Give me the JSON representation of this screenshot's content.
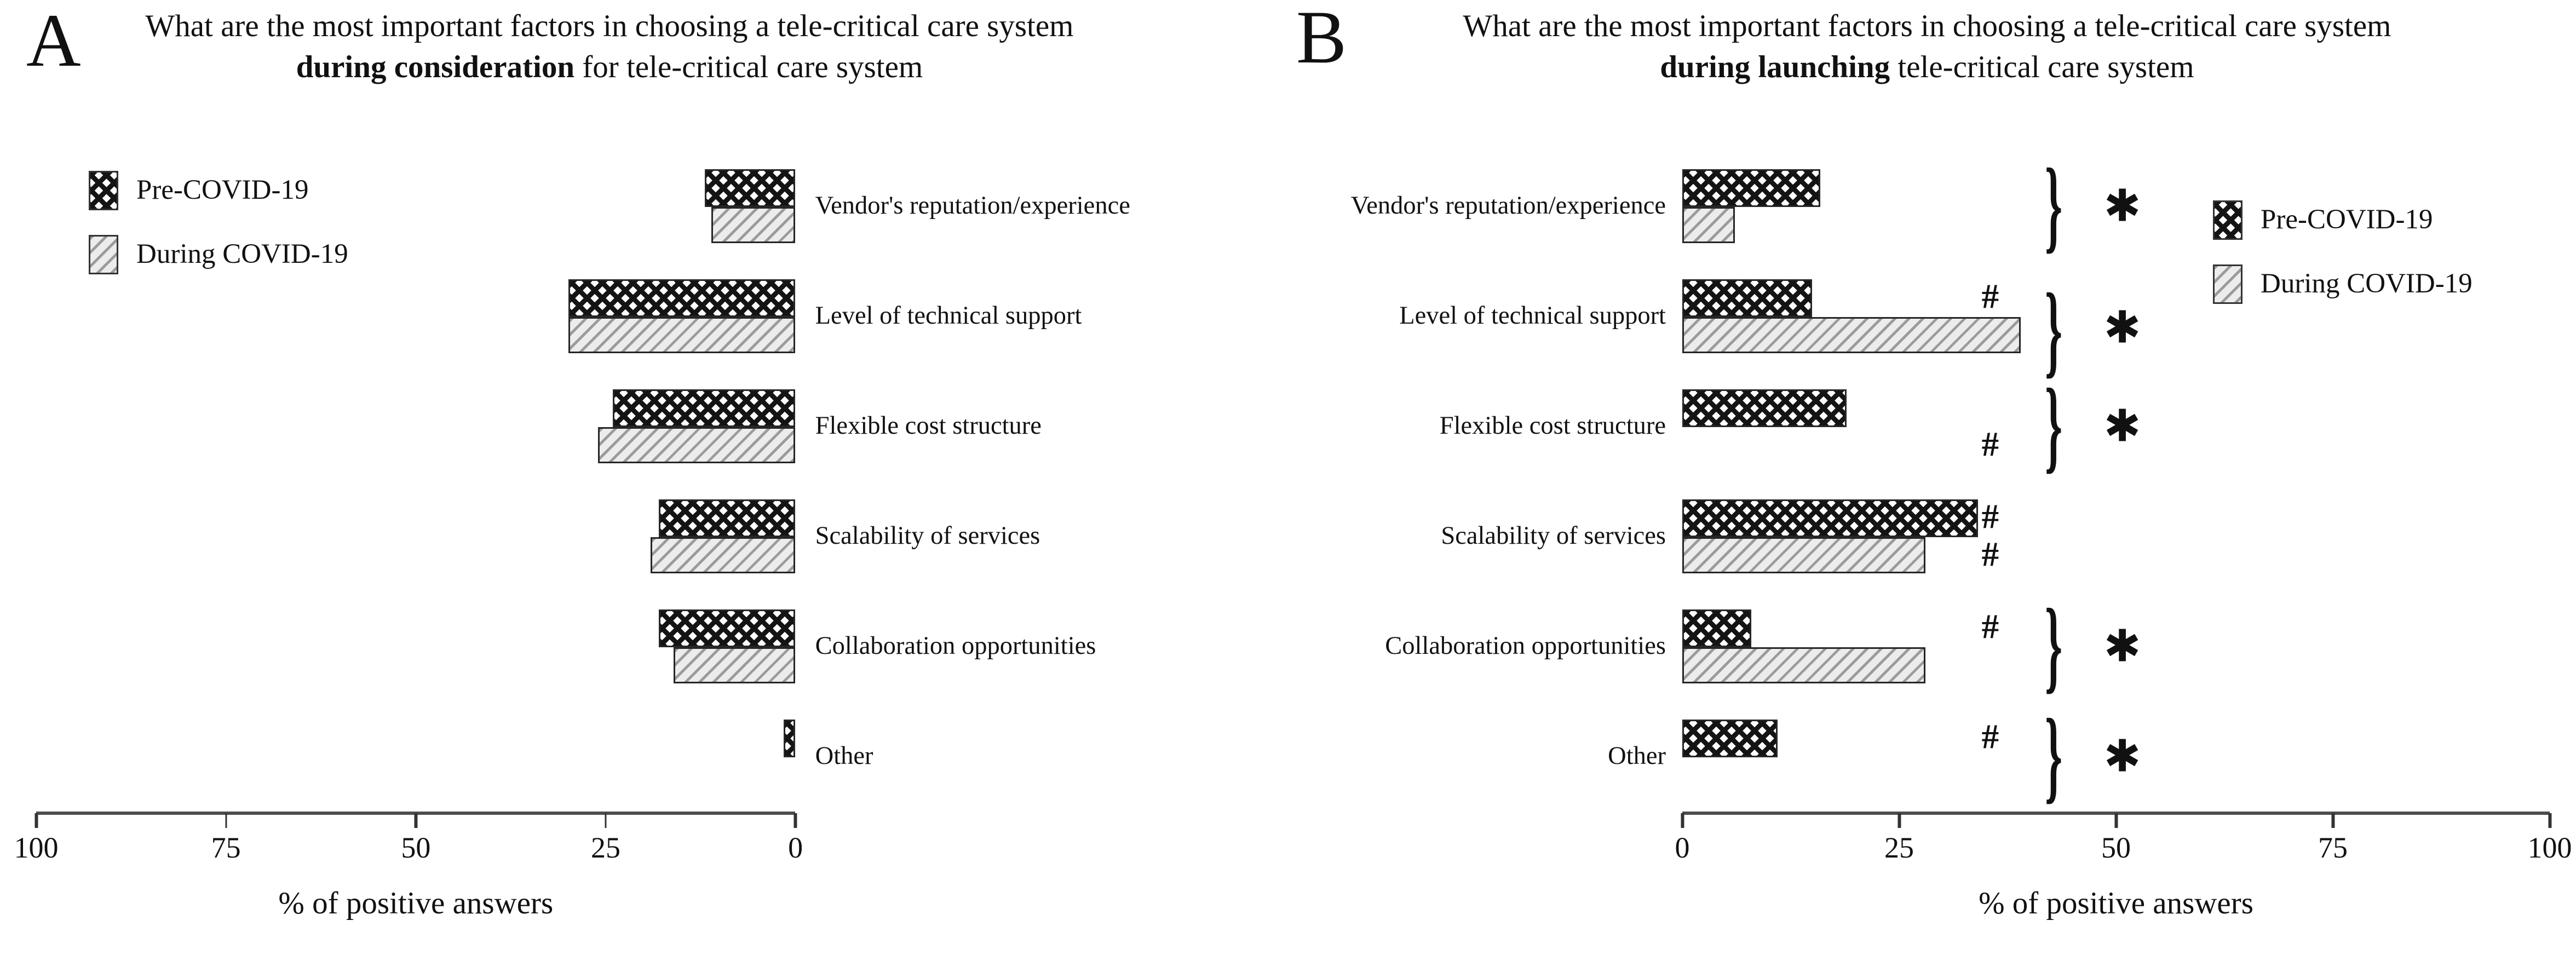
{
  "figure": {
    "panels": [
      {
        "letter": "A",
        "title_prefix": "What are the most important factors in choosing a tele-critical care system ",
        "title_bold": "during consideration",
        "title_suffix": " for tele-critical care system"
      },
      {
        "letter": "B",
        "title_prefix": "What are the most important factors in choosing a tele-critical care system ",
        "title_bold": "during launching",
        "title_suffix": " tele-critical care system"
      }
    ]
  },
  "legend": {
    "pre_label": "Pre-COVID-19",
    "during_label": "During COVID-19"
  },
  "axis": {
    "title": "% of positive answers",
    "ticks_a": [
      "100",
      "75",
      "50",
      "25",
      "0"
    ],
    "ticks_b": [
      "0",
      "25",
      "50",
      "75",
      "100"
    ]
  },
  "colors": {
    "pre_pattern": "#141414",
    "during_pattern_line": "#9b9b9b",
    "during_pattern_bg": "#ececec",
    "axis_line": "#4d4d4d",
    "text": "#111111"
  },
  "chart_data": [
    {
      "type": "bar",
      "orientation": "horizontal",
      "direction": "right-to-left",
      "title": "What are the most important factors in choosing a tele-critical care system during consideration for tele-critical care system",
      "categories": [
        "Vendor's reputation/experience",
        "Level of technical support",
        "Flexible cost structure",
        "Scalability of services",
        "Collaboration opportunities",
        "Other"
      ],
      "series": [
        {
          "name": "Pre-COVID-19",
          "values": [
            12,
            30,
            24,
            18,
            18,
            1.5
          ]
        },
        {
          "name": "During COVID-19",
          "values": [
            11,
            30,
            26,
            19,
            16,
            0
          ]
        }
      ],
      "xlabel": "% of positive answers",
      "xlim": [
        100,
        0
      ],
      "xticks": [
        100,
        75,
        50,
        25,
        0
      ],
      "grid": false,
      "legend_position": "upper left"
    },
    {
      "type": "bar",
      "orientation": "horizontal",
      "direction": "left-to-right",
      "title": "What are the most important factors in choosing a tele-critical care system during launching tele-critical care system",
      "categories": [
        "Vendor's reputation/experience",
        "Level of technical support",
        "Flexible cost structure",
        "Scalability of services",
        "Collaboration opportunities",
        "Other"
      ],
      "series": [
        {
          "name": "Pre-COVID-19",
          "values": [
            16,
            15,
            19,
            34,
            8,
            11
          ]
        },
        {
          "name": "During COVID-19",
          "values": [
            6,
            39,
            0,
            28,
            28,
            0
          ]
        }
      ],
      "xlabel": "% of positive answers",
      "xlim": [
        0,
        100
      ],
      "xticks": [
        0,
        25,
        50,
        75,
        100
      ],
      "grid": false,
      "legend_position": "upper right",
      "annotation_symbols": {
        "hash": "#",
        "brace": "}",
        "star": "✱"
      },
      "annotations": [
        {
          "category": "Vendor's reputation/experience",
          "hashes": [],
          "brace": true,
          "star": true
        },
        {
          "category": "Level of technical support",
          "hashes": [
            "pre"
          ],
          "brace": true,
          "brace_pos": "low",
          "star": true
        },
        {
          "category": "Flexible cost structure",
          "hashes": [
            "during"
          ],
          "brace": true,
          "star": true
        },
        {
          "category": "Scalability of services",
          "hashes": [
            "pre",
            "during"
          ],
          "brace": false,
          "star": false
        },
        {
          "category": "Collaboration opportunities",
          "hashes": [
            "pre"
          ],
          "brace": true,
          "star": true
        },
        {
          "category": "Other",
          "hashes": [
            "pre"
          ],
          "brace": true,
          "star": true
        }
      ]
    }
  ]
}
